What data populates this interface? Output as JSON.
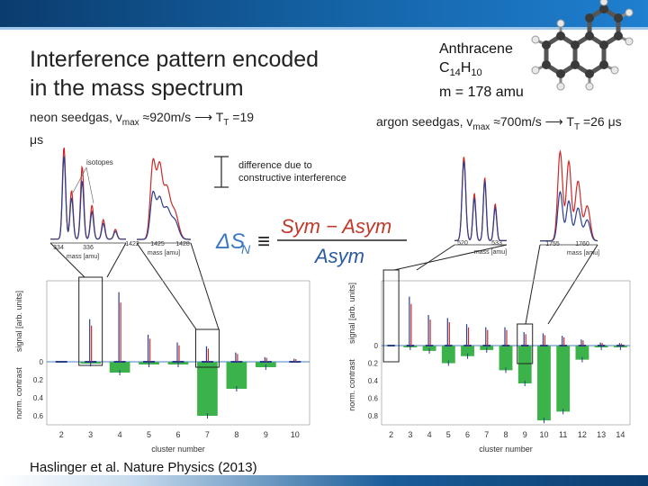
{
  "slide": {
    "title_line1": "Interference pattern encoded",
    "title_line2": "in the mass spectrum",
    "citation": "Haslinger et al. Nature Physics (2013)"
  },
  "molecule": {
    "name": "Anthracene",
    "formula_main": "C",
    "formula_sub1": "14",
    "formula_mid": "H",
    "formula_sub2": "10",
    "mass_text": "m = 178 amu"
  },
  "left_condition": {
    "text_a": "neon seedgas, v",
    "sub_a": "max",
    "text_b": " ≈920m/s ⟶ T",
    "sub_b": "T",
    "text_c": " =19",
    "line2": "μs"
  },
  "right_condition": {
    "text_a": "argon seedgas, v",
    "sub_a": "max",
    "text_b": " ≈700m/s ⟶ T",
    "sub_b": "T",
    "text_c": " =26 μs"
  },
  "annotation": {
    "line1": "difference due to",
    "line2": "constructive interference"
  },
  "formula": {
    "lhs": "ΔS",
    "lhs_sub": "N",
    "equiv": "≡",
    "numerator": "Sym − Asym",
    "denominator": "Asym"
  },
  "insets": {
    "left_isotopes": {
      "label": "isotopes",
      "ticks": [
        "334",
        "336"
      ],
      "xlabel": "mass [amu]"
    },
    "left_peak": {
      "ticks": [
        "1422",
        "1425",
        "1428"
      ],
      "xlabel": "mass [amu]"
    },
    "right_first": {
      "ticks": [
        "520",
        "533"
      ],
      "xlabel": "mass [amu]"
    },
    "right_second": {
      "ticks": [
        "1755",
        "1760"
      ],
      "xlabel": "mass [amu]"
    }
  },
  "colors": {
    "sym": "#cc2a2a",
    "asym": "#2c3f8c",
    "contrast_bar": "#3bb34a",
    "header": "#0b3c6e"
  },
  "chart_data": [
    {
      "type": "bar",
      "panel": "neon",
      "x": [
        2,
        3,
        4,
        5,
        6,
        7,
        8,
        9,
        10
      ],
      "xticks": [
        "2",
        "3",
        "4",
        "5",
        "6",
        "7",
        "8",
        "9",
        "10"
      ],
      "values": [
        0.0,
        0.02,
        0.12,
        0.03,
        0.03,
        0.6,
        0.3,
        0.06,
        0.0
      ],
      "signal_peaks": [
        0.0,
        0.55,
        0.9,
        0.35,
        0.25,
        0.2,
        0.12,
        0.06,
        0.04
      ],
      "xlabel": "cluster number",
      "ylabel": "norm. contrast",
      "ylabel_top": "signal [arb. units]",
      "yticks": [
        "0",
        "0.2",
        "0.4",
        "0.6"
      ],
      "ylim": [
        0,
        0.7
      ]
    },
    {
      "type": "bar",
      "panel": "argon",
      "x": [
        2,
        3,
        4,
        5,
        6,
        7,
        8,
        9,
        10,
        11,
        12,
        13,
        14
      ],
      "xticks": [
        "2",
        "3",
        "4",
        "5",
        "6",
        "7",
        "8",
        "9",
        "10",
        "11",
        "12",
        "13",
        "14"
      ],
      "values": [
        0.0,
        0.02,
        0.06,
        0.2,
        0.12,
        0.05,
        0.28,
        0.43,
        0.85,
        0.75,
        0.16,
        0.02,
        0.02
      ],
      "signal_peaks": [
        0.0,
        0.8,
        0.5,
        0.45,
        0.35,
        0.3,
        0.3,
        0.22,
        0.2,
        0.16,
        0.1,
        0.05,
        0.04
      ],
      "xlabel": "cluster number",
      "ylabel": "norm. contrast",
      "ylabel_top": "signal [arb. units]",
      "yticks": [
        "0",
        "0.2",
        "0.4",
        "0.6",
        "0.8"
      ],
      "ylim": [
        0,
        0.9
      ]
    }
  ]
}
